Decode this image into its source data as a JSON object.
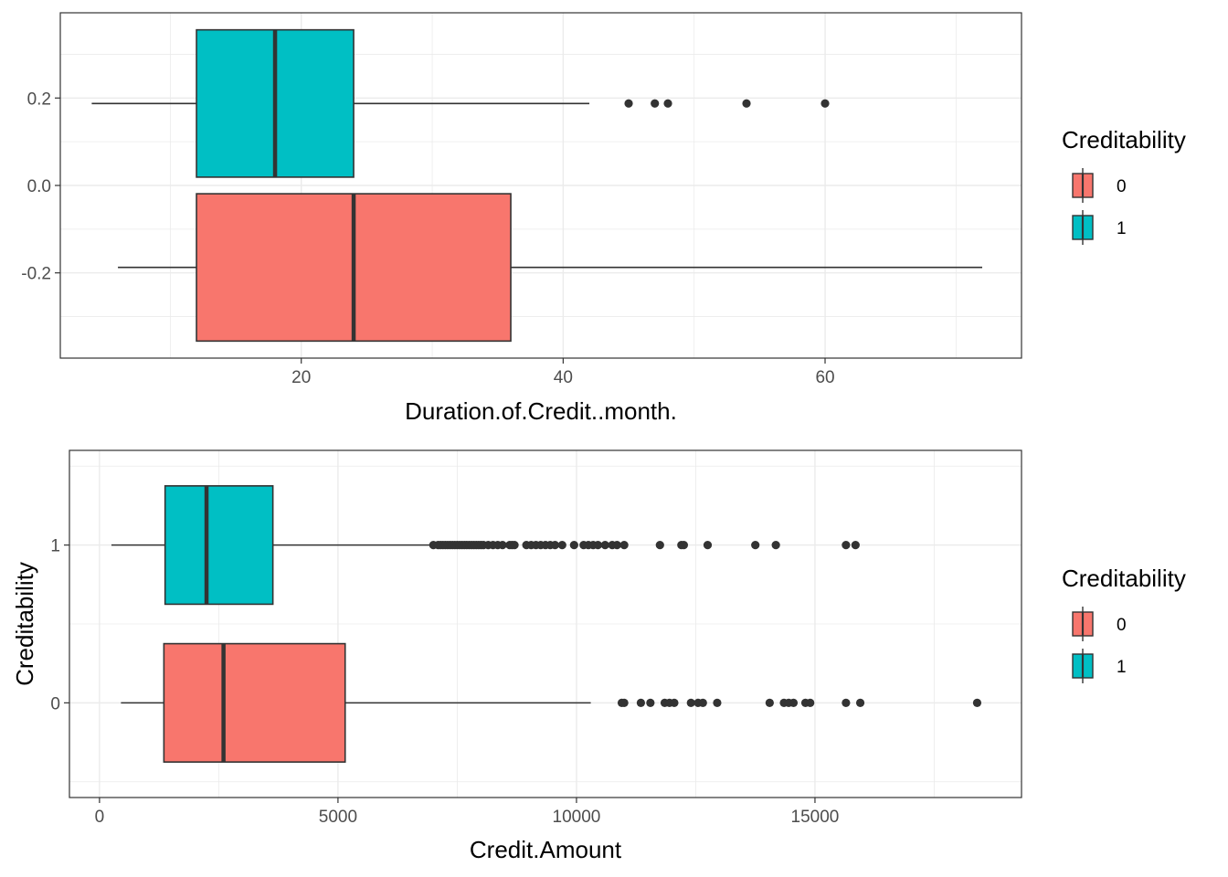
{
  "chart_data": [
    {
      "type": "boxplot",
      "orientation": "horizontal",
      "xlabel": "Duration.of.Credit..month.",
      "ylabel": "",
      "xlim": [
        1.6,
        75.0
      ],
      "ylim": [
        -0.395,
        0.395
      ],
      "x_ticks": [
        20,
        40,
        60
      ],
      "y_ticks": [
        0.2,
        0.0,
        -0.2
      ],
      "x_tick_labels": [
        "20",
        "40",
        "60"
      ],
      "y_tick_labels": [
        "0.2",
        "0.0",
        "-0.2"
      ],
      "grid": true,
      "legend": {
        "title": "Creditability",
        "placement": "right",
        "entries": [
          "0",
          "1"
        ]
      },
      "boxes": [
        {
          "group": "1",
          "color": "#00BFC4",
          "y_center": 0.1875,
          "y_halfwidth": 0.1685,
          "whisker_low": 4,
          "q1": 12,
          "median": 18,
          "q3": 24,
          "whisker_high": 42,
          "outliers": [
            45,
            47,
            48,
            54,
            60
          ]
        },
        {
          "group": "0",
          "color": "#F8766D",
          "y_center": -0.1875,
          "y_halfwidth": 0.1685,
          "whisker_low": 6,
          "q1": 12,
          "median": 24,
          "q3": 36,
          "whisker_high": 72,
          "outliers": []
        }
      ]
    },
    {
      "type": "boxplot",
      "orientation": "horizontal",
      "xlabel": "Credit.Amount",
      "ylabel": "Creditability",
      "xlim": [
        -630,
        19330
      ],
      "ylim": [
        -0.6,
        1.6
      ],
      "x_ticks": [
        0,
        5000,
        10000,
        15000
      ],
      "y_ticks": [
        1,
        0
      ],
      "x_tick_labels": [
        "0",
        "5000",
        "10000",
        "15000"
      ],
      "y_tick_labels": [
        "1",
        "0"
      ],
      "grid": true,
      "legend": {
        "title": "Creditability",
        "placement": "right",
        "entries": [
          "0",
          "1"
        ]
      },
      "boxes": [
        {
          "group": "1",
          "color": "#00BFC4",
          "y_center": 1,
          "y_halfwidth": 0.375,
          "whisker_low": 250,
          "q1": 1375,
          "median": 2244,
          "q3": 3635,
          "whisker_high": 7000,
          "outliers": [
            7000,
            7100,
            7150,
            7200,
            7250,
            7300,
            7350,
            7400,
            7450,
            7500,
            7550,
            7600,
            7650,
            7700,
            7750,
            7800,
            7850,
            7900,
            7950,
            8000,
            8050,
            8150,
            8250,
            8350,
            8450,
            8600,
            8650,
            8700,
            8950,
            9050,
            9150,
            9250,
            9350,
            9450,
            9550,
            9700,
            9950,
            10150,
            10250,
            10350,
            10450,
            10600,
            10750,
            10850,
            11000,
            11750,
            12200,
            12250,
            12750,
            13750,
            14180,
            15650,
            15850
          ]
        },
        {
          "group": "0",
          "color": "#F8766D",
          "y_center": 0,
          "y_halfwidth": 0.375,
          "whisker_low": 450,
          "q1": 1350,
          "median": 2600,
          "q3": 5150,
          "whisker_high": 10300,
          "outliers": [
            10950,
            11000,
            11350,
            11550,
            11850,
            11950,
            12050,
            12400,
            12550,
            12650,
            12950,
            14050,
            14350,
            14450,
            14550,
            14800,
            14900,
            15650,
            15950,
            18400
          ]
        }
      ]
    }
  ]
}
